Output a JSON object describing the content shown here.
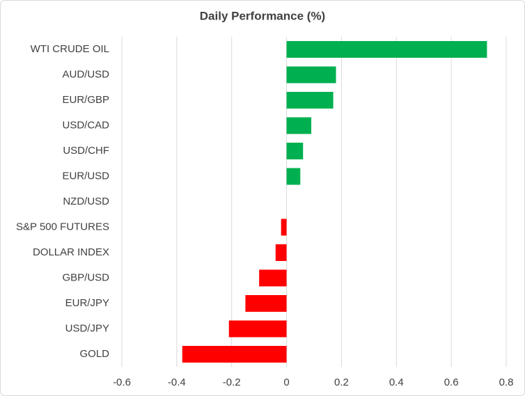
{
  "chart_data": {
    "type": "hbar",
    "title": "Daily Performance (%)",
    "categories": [
      "WTI CRUDE OIL",
      "AUD/USD",
      "EUR/GBP",
      "USD/CAD",
      "USD/CHF",
      "EUR/USD",
      "NZD/USD",
      "S&P 500 FUTURES",
      "DOLLAR INDEX",
      "GBP/USD",
      "EUR/JPY",
      "USD/JPY",
      "GOLD"
    ],
    "values": [
      0.73,
      0.18,
      0.17,
      0.09,
      0.06,
      0.05,
      0,
      -0.02,
      -0.04,
      -0.1,
      -0.15,
      -0.21,
      -0.38
    ],
    "positive_color": "#00b050",
    "negative_color": "#ff0000",
    "xlim": [
      -0.6,
      0.8
    ],
    "xticks": [
      -0.6,
      -0.4,
      -0.2,
      0,
      0.2,
      0.4,
      0.6,
      0.8
    ],
    "grid": true
  }
}
